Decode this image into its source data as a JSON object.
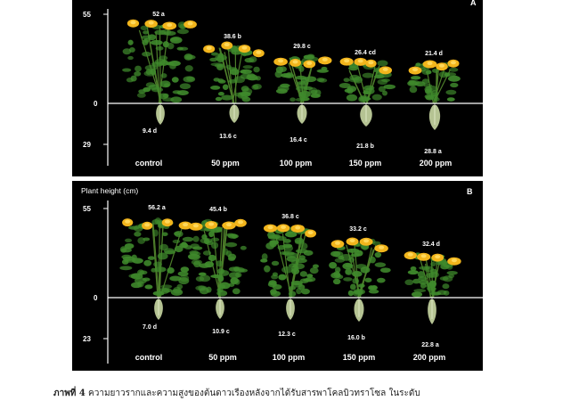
{
  "figure": {
    "panels": [
      {
        "id": "A",
        "letter": "A",
        "ylabel": "",
        "axis_ticks": [
          "55",
          "0",
          "29"
        ],
        "treatments": [
          "control",
          "50 ppm",
          "100 ppm",
          "150 ppm",
          "200 ppm"
        ],
        "shoot_labels": [
          "52 a",
          "38.6 b",
          "29.8 c",
          "26.4 cd",
          "21.4 d"
        ],
        "root_labels": [
          "9.4 d",
          "13.6 c",
          "16.4 c",
          "21.8 b",
          "28.8 a"
        ]
      },
      {
        "id": "B",
        "letter": "B",
        "ylabel": "Plant height (cm)",
        "axis_ticks": [
          "55",
          "0",
          "23"
        ],
        "treatments": [
          "control",
          "50 ppm",
          "100 ppm",
          "150 ppm",
          "200 ppm"
        ],
        "shoot_labels": [
          "56.2 a",
          "45.4 b",
          "36.8 c",
          "33.2 c",
          "32.4 d"
        ],
        "root_labels": [
          "7.0 d",
          "10.9 c",
          "12.3 c",
          "16.0 b",
          "22.8 a"
        ]
      }
    ],
    "caption": {
      "prefix": "ภาพที่ 4",
      "text": "ความยาวรากและความสูงของต้นดาวเรืองหลังจากได้รับสารพาโคลบิวทราโซล ในระดับ"
    },
    "colors": {
      "background": "#000000",
      "leaf": "#3f8a2c",
      "flower": "#f2b51c",
      "root": "#c9d8a3"
    }
  }
}
